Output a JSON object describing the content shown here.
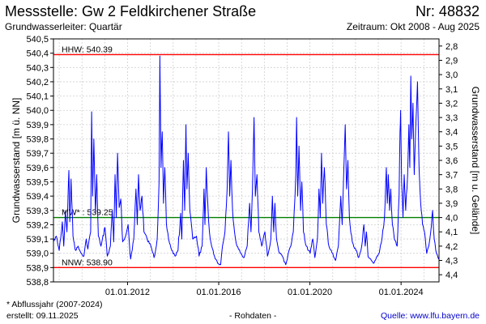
{
  "header": {
    "title": "Messstelle: Gw 2 Feldkirchener Straße",
    "number": "Nr: 48832",
    "aquifer": "Grundwasserleiter: Quartär",
    "period": "Zeitraum: Okt 2008 - Aug 2025"
  },
  "footer": {
    "footnote": "* Abflussjahr (2007-2024)",
    "created": "erstellt:  09.11.2025",
    "raw": "- Rohdaten -",
    "source": "Quelle: www.lfu.bayern.de"
  },
  "chart_data": {
    "type": "line",
    "ylabel": "Grundwasserstand [m ü. NN]",
    "y2label": "Grundwasserstand [m u. Gelände]",
    "ylim": [
      538.8,
      540.5
    ],
    "yticks": [
      "538,8",
      "538,9",
      "539,0",
      "539,1",
      "539,2",
      "539,3",
      "539,4",
      "539,5",
      "539,6",
      "539,7",
      "539,8",
      "539,9",
      "540,0",
      "540,1",
      "540,2",
      "540,3",
      "540,4",
      "540,5"
    ],
    "y2lim": [
      4.45,
      2.75
    ],
    "y2ticks": [
      "2,8",
      "2,9",
      "3,0",
      "3,1",
      "3,2",
      "3,3",
      "3,4",
      "3,5",
      "3,6",
      "3,7",
      "3,8",
      "3,9",
      "4,0",
      "4,1",
      "4,2",
      "4,3",
      "4,4"
    ],
    "xlim": [
      "2008-10-01",
      "2025-08-31"
    ],
    "xticks": [
      {
        "date": "2012-01-01",
        "label": "01.01.2012"
      },
      {
        "date": "2016-01-01",
        "label": "01.01.2016"
      },
      {
        "date": "2020-01-01",
        "label": "01.01.2020"
      },
      {
        "date": "2024-01-01",
        "label": "01.01.2024"
      }
    ],
    "grid": true,
    "reference_lines": [
      {
        "label": "HHW: 540.39",
        "value": 540.39,
        "color": "#ff0000"
      },
      {
        "label": "MW* : 539.25",
        "value": 539.25,
        "color": "#008000"
      },
      {
        "label": "NNW: 538.90",
        "value": 538.9,
        "color": "#ff0000"
      }
    ],
    "series": [
      {
        "color": "#0000ff",
        "points": [
          [
            "2008-10-01",
            539.08
          ],
          [
            "2008-11-15",
            539.12
          ],
          [
            "2009-01-01",
            539.02
          ],
          [
            "2009-02-20",
            539.22
          ],
          [
            "2009-03-15",
            539.05
          ],
          [
            "2009-04-10",
            539.3
          ],
          [
            "2009-05-05",
            539.15
          ],
          [
            "2009-06-05",
            539.58
          ],
          [
            "2009-06-20",
            539.22
          ],
          [
            "2009-07-10",
            539.52
          ],
          [
            "2009-08-10",
            539.12
          ],
          [
            "2009-09-20",
            539.02
          ],
          [
            "2009-11-01",
            539.05
          ],
          [
            "2009-12-20",
            539.0
          ],
          [
            "2010-02-01",
            538.98
          ],
          [
            "2010-03-10",
            539.1
          ],
          [
            "2010-04-05",
            539.03
          ],
          [
            "2010-05-20",
            539.15
          ],
          [
            "2010-06-05",
            539.99
          ],
          [
            "2010-06-20",
            539.4
          ],
          [
            "2010-07-10",
            539.8
          ],
          [
            "2010-08-05",
            539.28
          ],
          [
            "2010-08-25",
            539.55
          ],
          [
            "2010-09-20",
            539.12
          ],
          [
            "2010-11-01",
            539.05
          ],
          [
            "2011-01-05",
            539.18
          ],
          [
            "2011-02-10",
            538.98
          ],
          [
            "2011-04-01",
            539.05
          ],
          [
            "2011-05-01",
            539.3
          ],
          [
            "2011-05-25",
            539.08
          ],
          [
            "2011-06-15",
            539.55
          ],
          [
            "2011-07-05",
            539.25
          ],
          [
            "2011-07-25",
            539.7
          ],
          [
            "2011-08-20",
            539.32
          ],
          [
            "2011-09-15",
            539.38
          ],
          [
            "2011-10-15",
            539.08
          ],
          [
            "2011-12-01",
            539.12
          ],
          [
            "2012-01-10",
            539.2
          ],
          [
            "2012-02-20",
            538.96
          ],
          [
            "2012-04-10",
            539.1
          ],
          [
            "2012-05-15",
            539.45
          ],
          [
            "2012-06-05",
            539.2
          ],
          [
            "2012-06-25",
            539.55
          ],
          [
            "2012-07-20",
            539.3
          ],
          [
            "2012-08-20",
            539.4
          ],
          [
            "2012-09-20",
            539.15
          ],
          [
            "2012-11-10",
            539.1
          ],
          [
            "2013-01-10",
            539.05
          ],
          [
            "2013-03-01",
            538.97
          ],
          [
            "2013-04-20",
            539.1
          ],
          [
            "2013-05-20",
            539.5
          ],
          [
            "2013-06-02",
            540.38
          ],
          [
            "2013-06-20",
            539.6
          ],
          [
            "2013-07-10",
            539.85
          ],
          [
            "2013-07-30",
            539.35
          ],
          [
            "2013-08-20",
            539.6
          ],
          [
            "2013-09-15",
            539.2
          ],
          [
            "2013-10-20",
            539.1
          ],
          [
            "2013-12-10",
            539.02
          ],
          [
            "2014-02-01",
            538.98
          ],
          [
            "2014-03-20",
            539.02
          ],
          [
            "2014-05-01",
            539.28
          ],
          [
            "2014-05-20",
            539.1
          ],
          [
            "2014-06-15",
            539.65
          ],
          [
            "2014-07-05",
            539.3
          ],
          [
            "2014-07-25",
            539.9
          ],
          [
            "2014-08-10",
            539.45
          ],
          [
            "2014-08-30",
            539.7
          ],
          [
            "2014-09-25",
            539.3
          ],
          [
            "2014-11-10",
            539.1
          ],
          [
            "2015-01-10",
            539.12
          ],
          [
            "2015-02-20",
            538.98
          ],
          [
            "2015-04-10",
            539.05
          ],
          [
            "2015-05-10",
            539.45
          ],
          [
            "2015-05-25",
            539.2
          ],
          [
            "2015-06-15",
            539.6
          ],
          [
            "2015-07-10",
            539.35
          ],
          [
            "2015-08-05",
            539.15
          ],
          [
            "2015-09-10",
            539.05
          ],
          [
            "2015-10-25",
            538.98
          ],
          [
            "2015-12-15",
            538.93
          ],
          [
            "2016-02-01",
            538.92
          ],
          [
            "2016-03-01",
            539.05
          ],
          [
            "2016-04-10",
            539.15
          ],
          [
            "2016-05-15",
            539.45
          ],
          [
            "2016-06-05",
            539.85
          ],
          [
            "2016-06-25",
            539.4
          ],
          [
            "2016-07-15",
            539.65
          ],
          [
            "2016-08-10",
            539.3
          ],
          [
            "2016-09-10",
            539.15
          ],
          [
            "2016-10-20",
            539.05
          ],
          [
            "2016-12-20",
            539.0
          ],
          [
            "2017-02-10",
            538.97
          ],
          [
            "2017-04-01",
            539.05
          ],
          [
            "2017-05-10",
            539.35
          ],
          [
            "2017-06-01",
            539.15
          ],
          [
            "2017-06-25",
            539.45
          ],
          [
            "2017-07-20",
            539.95
          ],
          [
            "2017-08-10",
            539.4
          ],
          [
            "2017-09-05",
            539.55
          ],
          [
            "2017-10-05",
            539.15
          ],
          [
            "2017-11-20",
            539.05
          ],
          [
            "2018-01-10",
            539.15
          ],
          [
            "2018-02-20",
            538.98
          ],
          [
            "2018-04-15",
            539.1
          ],
          [
            "2018-05-10",
            539.4
          ],
          [
            "2018-06-01",
            539.15
          ],
          [
            "2018-06-20",
            539.35
          ],
          [
            "2018-07-15",
            539.1
          ],
          [
            "2018-09-01",
            539.0
          ],
          [
            "2018-10-15",
            538.98
          ],
          [
            "2018-11-15",
            538.94
          ],
          [
            "2018-12-10",
            538.92
          ],
          [
            "2019-01-15",
            538.99
          ],
          [
            "2019-03-01",
            539.05
          ],
          [
            "2019-04-10",
            539.15
          ],
          [
            "2019-05-20",
            539.55
          ],
          [
            "2019-06-02",
            539.95
          ],
          [
            "2019-06-20",
            539.4
          ],
          [
            "2019-07-10",
            539.75
          ],
          [
            "2019-08-05",
            539.3
          ],
          [
            "2019-08-25",
            539.5
          ],
          [
            "2019-09-20",
            539.15
          ],
          [
            "2019-11-05",
            539.05
          ],
          [
            "2020-01-05",
            539.0
          ],
          [
            "2020-02-15",
            539.1
          ],
          [
            "2020-03-20",
            538.97
          ],
          [
            "2020-05-01",
            539.1
          ],
          [
            "2020-05-25",
            539.45
          ],
          [
            "2020-06-15",
            539.25
          ],
          [
            "2020-07-05",
            539.7
          ],
          [
            "2020-07-25",
            539.35
          ],
          [
            "2020-08-20",
            539.6
          ],
          [
            "2020-09-20",
            539.2
          ],
          [
            "2020-11-01",
            539.05
          ],
          [
            "2021-01-01",
            539.0
          ],
          [
            "2021-02-15",
            538.95
          ],
          [
            "2021-04-01",
            539.05
          ],
          [
            "2021-05-10",
            539.4
          ],
          [
            "2021-06-01",
            539.2
          ],
          [
            "2021-06-25",
            539.55
          ],
          [
            "2021-07-20",
            539.9
          ],
          [
            "2021-08-10",
            539.45
          ],
          [
            "2021-09-01",
            539.65
          ],
          [
            "2021-09-25",
            539.25
          ],
          [
            "2021-11-10",
            539.08
          ],
          [
            "2022-01-10",
            539.02
          ],
          [
            "2022-02-20",
            538.97
          ],
          [
            "2022-04-10",
            539.05
          ],
          [
            "2022-05-15",
            539.2
          ],
          [
            "2022-06-05",
            539.05
          ],
          [
            "2022-06-25",
            539.15
          ],
          [
            "2022-07-20",
            538.98
          ],
          [
            "2022-09-01",
            538.96
          ],
          [
            "2022-10-15",
            538.93
          ],
          [
            "2022-12-01",
            538.97
          ],
          [
            "2023-01-15",
            539.0
          ],
          [
            "2023-03-01",
            539.1
          ],
          [
            "2023-04-10",
            539.25
          ],
          [
            "2023-05-10",
            539.6
          ],
          [
            "2023-05-25",
            539.35
          ],
          [
            "2023-06-10",
            539.55
          ],
          [
            "2023-07-01",
            539.3
          ],
          [
            "2023-07-20",
            539.45
          ],
          [
            "2023-08-15",
            539.2
          ],
          [
            "2023-09-15",
            539.1
          ],
          [
            "2023-10-30",
            539.05
          ],
          [
            "2023-11-30",
            539.4
          ],
          [
            "2023-12-15",
            539.85
          ],
          [
            "2023-12-25",
            540.0
          ],
          [
            "2024-01-10",
            539.5
          ],
          [
            "2024-02-01",
            539.25
          ],
          [
            "2024-02-20",
            539.55
          ],
          [
            "2024-03-15",
            539.3
          ],
          [
            "2024-04-15",
            539.55
          ],
          [
            "2024-05-05",
            539.9
          ],
          [
            "2024-05-20",
            539.6
          ],
          [
            "2024-06-05",
            540.24
          ],
          [
            "2024-06-20",
            539.8
          ],
          [
            "2024-07-10",
            540.05
          ],
          [
            "2024-07-30",
            539.55
          ],
          [
            "2024-08-20",
            539.85
          ],
          [
            "2024-09-20",
            540.2
          ],
          [
            "2024-10-15",
            539.6
          ],
          [
            "2024-11-10",
            539.35
          ],
          [
            "2024-12-10",
            539.2
          ],
          [
            "2025-01-10",
            539.15
          ],
          [
            "2025-02-15",
            539.0
          ],
          [
            "2025-03-20",
            539.05
          ],
          [
            "2025-04-20",
            539.15
          ],
          [
            "2025-05-20",
            539.3
          ],
          [
            "2025-06-15",
            539.1
          ],
          [
            "2025-07-10",
            539.02
          ],
          [
            "2025-08-15",
            538.97
          ],
          [
            "2025-08-31",
            538.96
          ]
        ]
      }
    ]
  }
}
